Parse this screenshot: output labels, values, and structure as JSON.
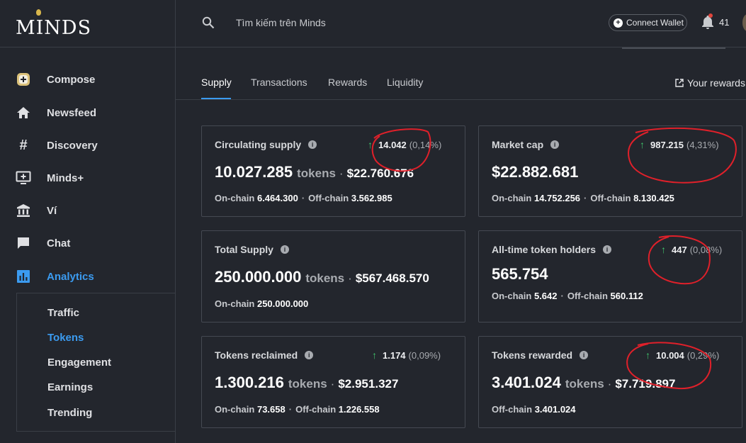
{
  "app": {
    "logo_text": "MINDS"
  },
  "search": {
    "placeholder": "Tìm kiếm trên Minds"
  },
  "topbar": {
    "connect_wallet_label": "Connect Wallet",
    "notification_count": "41"
  },
  "sidebar": {
    "items": [
      {
        "label": "Compose",
        "icon": "compose-icon"
      },
      {
        "label": "Newsfeed",
        "icon": "home-icon"
      },
      {
        "label": "Discovery",
        "icon": "hashtag-icon"
      },
      {
        "label": "Minds+",
        "icon": "minds-plus-icon"
      },
      {
        "label": "Ví",
        "icon": "bank-icon"
      },
      {
        "label": "Chat",
        "icon": "chat-icon"
      },
      {
        "label": "Analytics",
        "icon": "analytics-icon"
      }
    ],
    "subitems": [
      "Traffic",
      "Tokens",
      "Engagement",
      "Earnings",
      "Trending"
    ]
  },
  "tabs": [
    "Supply",
    "Transactions",
    "Rewards",
    "Liquidity"
  ],
  "your_rewards_label": "Your rewards",
  "cards": {
    "circulating": {
      "title": "Circulating supply",
      "change": "14.042",
      "pct": "(0,14%)",
      "value": "10.027.285",
      "unit": "tokens",
      "sep": "·",
      "usd": "$22.760.676",
      "onchain_label": "On-chain",
      "onchain": "6.464.300",
      "offchain_label": "Off-chain",
      "offchain": "3.562.985"
    },
    "marketcap": {
      "title": "Market cap",
      "change": "987.215",
      "pct": "(4,31%)",
      "value": "$22.882.681",
      "onchain_label": "On-chain",
      "onchain": "14.752.256",
      "offchain_label": "Off-chain",
      "offchain": "8.130.425"
    },
    "total": {
      "title": "Total Supply",
      "value": "250.000.000",
      "unit": "tokens",
      "sep": "·",
      "usd": "$567.468.570",
      "onchain_label": "On-chain",
      "onchain": "250.000.000"
    },
    "holders": {
      "title": "All-time token holders",
      "change": "447",
      "pct": "(0,08%)",
      "value": "565.754",
      "onchain_label": "On-chain",
      "onchain": "5.642",
      "offchain_label": "Off-chain",
      "offchain": "560.112"
    },
    "reclaimed": {
      "title": "Tokens reclaimed",
      "change": "1.174",
      "pct": "(0,09%)",
      "value": "1.300.216",
      "unit": "tokens",
      "sep": "·",
      "usd": "$2.951.327",
      "onchain_label": "On-chain",
      "onchain": "73.658",
      "offchain_label": "Off-chain",
      "offchain": "1.226.558"
    },
    "rewarded": {
      "title": "Tokens rewarded",
      "change": "10.004",
      "pct": "(0,29%)",
      "value": "3.401.024",
      "unit": "tokens",
      "sep": "·",
      "usd": "$7.719.897",
      "offchain_label": "Off-chain",
      "offchain": "3.401.024"
    }
  },
  "colors": {
    "accent": "#3b9bf0",
    "positive": "#3fc16b",
    "annotation": "#e0202a"
  }
}
